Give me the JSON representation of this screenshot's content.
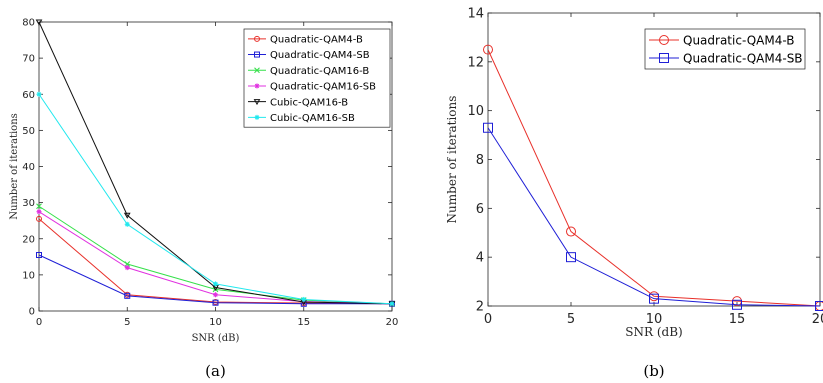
{
  "chart_data": [
    {
      "type": "line",
      "caption": "(a)",
      "xlabel": "SNR (dB)",
      "ylabel": "Number of iterations",
      "xlim": [
        0,
        20
      ],
      "ylim": [
        0,
        80
      ],
      "xticks": [
        0,
        5,
        10,
        15,
        20
      ],
      "yticks": [
        0,
        10,
        20,
        30,
        40,
        50,
        60,
        70,
        80
      ],
      "grid": false,
      "legend_position": "top-right",
      "x": [
        0,
        5,
        10,
        15,
        20
      ],
      "series": [
        {
          "name": "Quadratic-QAM4-B",
          "values": [
            25.5,
            4.5,
            2.5,
            2.2,
            2
          ],
          "color": "#e8302a",
          "marker": "circle"
        },
        {
          "name": "Quadratic-QAM4-SB",
          "values": [
            15.5,
            4.2,
            2.3,
            2.0,
            2
          ],
          "color": "#1f1fd6",
          "marker": "square"
        },
        {
          "name": "Quadratic-QAM16-B",
          "values": [
            29,
            13,
            6,
            3,
            2
          ],
          "color": "#35e04a",
          "marker": "x"
        },
        {
          "name": "Quadratic-QAM16-SB",
          "values": [
            27.5,
            12,
            4.5,
            2.6,
            2
          ],
          "color": "#e032e0",
          "marker": "star"
        },
        {
          "name": "Cubic-QAM16-B",
          "values": [
            80,
            26.5,
            6.5,
            2.5,
            2
          ],
          "color": "#111111",
          "marker": "triangle-down"
        },
        {
          "name": "Cubic-QAM16-SB",
          "values": [
            60,
            24,
            7.5,
            3.2,
            2
          ],
          "color": "#22e8ee",
          "marker": "star"
        }
      ]
    },
    {
      "type": "line",
      "caption": "(b)",
      "xlabel": "SNR (dB)",
      "ylabel": "Number of iterations",
      "xlim": [
        0,
        20
      ],
      "ylim": [
        2,
        14
      ],
      "xticks": [
        0,
        5,
        10,
        15,
        20
      ],
      "xtick_labels": [
        "0",
        "5",
        "10",
        "15",
        "20"
      ],
      "yticks": [
        2,
        4,
        6,
        8,
        10,
        12,
        14
      ],
      "grid": false,
      "legend_position": "top-right",
      "x": [
        0,
        5,
        10,
        15,
        20
      ],
      "series": [
        {
          "name": "Quadratic-QAM4-B",
          "values": [
            12.5,
            5.05,
            2.4,
            2.2,
            2.0
          ],
          "color": "#e8302a",
          "marker": "circle"
        },
        {
          "name": "Quadratic-QAM4-SB",
          "values": [
            9.3,
            4.0,
            2.3,
            2.05,
            2.0
          ],
          "color": "#1f1fd6",
          "marker": "square"
        }
      ]
    }
  ]
}
